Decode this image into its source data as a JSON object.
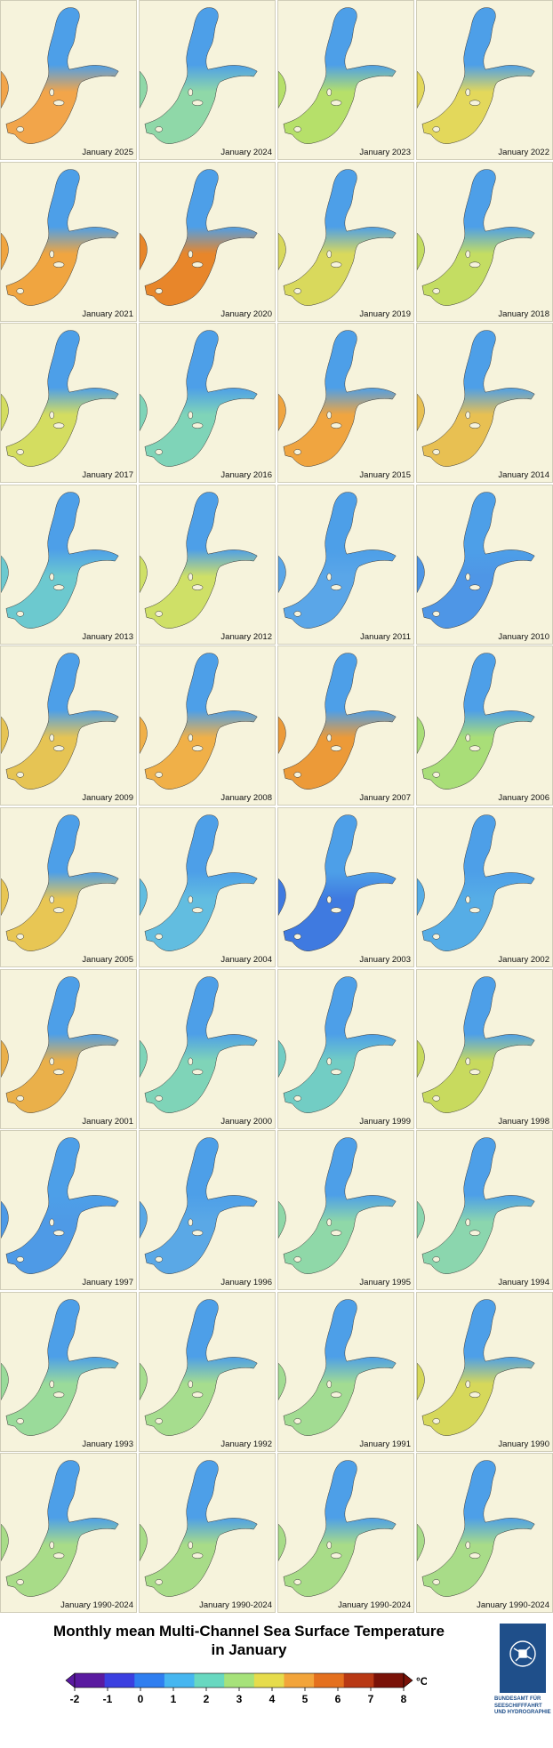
{
  "panels": [
    {
      "label": "January 2025",
      "color": "#f2a54a"
    },
    {
      "label": "January 2024",
      "color": "#8fd8a8"
    },
    {
      "label": "January 2023",
      "color": "#b6e06a"
    },
    {
      "label": "January 2022",
      "color": "#e3d85b"
    },
    {
      "label": "January 2021",
      "color": "#f0a540"
    },
    {
      "label": "January 2020",
      "color": "#e8862a"
    },
    {
      "label": "January 2019",
      "color": "#d9d95c"
    },
    {
      "label": "January 2018",
      "color": "#c4dd62"
    },
    {
      "label": "January 2017",
      "color": "#d4dd60"
    },
    {
      "label": "January 2016",
      "color": "#7fd4b8"
    },
    {
      "label": "January 2015",
      "color": "#f0a540"
    },
    {
      "label": "January 2014",
      "color": "#e8c052"
    },
    {
      "label": "January 2013",
      "color": "#6cc9cf"
    },
    {
      "label": "January 2012",
      "color": "#cfe067"
    },
    {
      "label": "January 2011",
      "color": "#5aa6e8"
    },
    {
      "label": "January 2010",
      "color": "#4e96e6"
    },
    {
      "label": "January 2009",
      "color": "#e6c454"
    },
    {
      "label": "January 2008",
      "color": "#f0b048"
    },
    {
      "label": "January 2007",
      "color": "#ec9a38"
    },
    {
      "label": "January 2006",
      "color": "#a9de78"
    },
    {
      "label": "January 2005",
      "color": "#e8c654"
    },
    {
      "label": "January 2004",
      "color": "#62bde0"
    },
    {
      "label": "January 2003",
      "color": "#3f7ae0"
    },
    {
      "label": "January 2002",
      "color": "#56ade6"
    },
    {
      "label": "January 2001",
      "color": "#eab04a"
    },
    {
      "label": "January 2000",
      "color": "#7fd4b8"
    },
    {
      "label": "January 1999",
      "color": "#72cdc4"
    },
    {
      "label": "January 1998",
      "color": "#c8da5e"
    },
    {
      "label": "January 1997",
      "color": "#4e9ae6"
    },
    {
      "label": "January 1996",
      "color": "#5aa8e6"
    },
    {
      "label": "January 1995",
      "color": "#8fd8a8"
    },
    {
      "label": "January 1994",
      "color": "#8bd6ae"
    },
    {
      "label": "January 1993",
      "color": "#9adb9a"
    },
    {
      "label": "January 1992",
      "color": "#a6dd8e"
    },
    {
      "label": "January 1991",
      "color": "#a2dc92"
    },
    {
      "label": "January 1990",
      "color": "#d6d85a"
    },
    {
      "label": "January 1990-2024",
      "color": "#a8dc88"
    },
    {
      "label": "January 1990-2024",
      "color": "#a8dc88"
    },
    {
      "label": "January 1990-2024",
      "color": "#a8dc88"
    },
    {
      "label": "January 1990-2024",
      "color": "#a8dc88"
    }
  ],
  "land_color": "#f6f3dc",
  "north_color": "#4d9fe8",
  "title_line1": "Monthly mean Multi-Channel Sea Surface Temperature",
  "title_line2": "in January",
  "colorbar": {
    "ticks": [
      "-2",
      "-1",
      "0",
      "1",
      "2",
      "3",
      "4",
      "5",
      "6",
      "7",
      "8"
    ],
    "unit": "°C",
    "colors": [
      "#5a1aa0",
      "#3b3fe0",
      "#2f7ef0",
      "#46b6f0",
      "#68d8c0",
      "#a6e27a",
      "#e6dc4c",
      "#f2a43a",
      "#e4701e",
      "#b83814",
      "#7a1208"
    ]
  },
  "logo": {
    "icon": "bsh-logo-icon",
    "text": "BUNDESAMT FÜR SEESCHIFFFAHRT UND HYDROGRAPHIE"
  }
}
